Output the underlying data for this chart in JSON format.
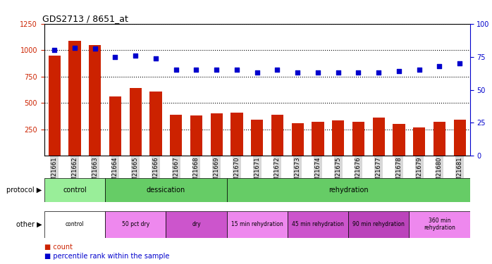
{
  "title": "GDS2713 / 8651_at",
  "samples": [
    "GSM21661",
    "GSM21662",
    "GSM21663",
    "GSM21664",
    "GSM21665",
    "GSM21666",
    "GSM21667",
    "GSM21668",
    "GSM21669",
    "GSM21670",
    "GSM21671",
    "GSM21672",
    "GSM21673",
    "GSM21674",
    "GSM21675",
    "GSM21676",
    "GSM21677",
    "GSM21678",
    "GSM21679",
    "GSM21680",
    "GSM21681"
  ],
  "counts": [
    950,
    1090,
    1050,
    560,
    640,
    610,
    390,
    380,
    400,
    410,
    340,
    390,
    310,
    320,
    335,
    325,
    365,
    300,
    270,
    320,
    345
  ],
  "percentiles": [
    80,
    82,
    81,
    75,
    76,
    74,
    65,
    65,
    65,
    65,
    63,
    65,
    63,
    63,
    63,
    63,
    63,
    64,
    65,
    68,
    70
  ],
  "ylim_left": [
    0,
    1250
  ],
  "ylim_right": [
    0,
    100
  ],
  "yticks_left": [
    250,
    500,
    750,
    1000,
    1250
  ],
  "yticks_right": [
    0,
    25,
    50,
    75,
    100
  ],
  "bar_color": "#cc2200",
  "scatter_color": "#0000cc",
  "protocol_colors": {
    "control": "#99ee99",
    "dessication": "#66cc66",
    "rehydration": "#66cc66"
  },
  "protocol_groups": [
    {
      "label": "control",
      "start": 0,
      "end": 3,
      "color": "#99ee99"
    },
    {
      "label": "dessication",
      "start": 3,
      "end": 9,
      "color": "#66cc66"
    },
    {
      "label": "rehydration",
      "start": 9,
      "end": 21,
      "color": "#66cc66"
    }
  ],
  "other_groups": [
    {
      "label": "control",
      "start": 0,
      "end": 3,
      "color": "#ffffff"
    },
    {
      "label": "50 pct dry",
      "start": 3,
      "end": 6,
      "color": "#ee88ee"
    },
    {
      "label": "dry",
      "start": 6,
      "end": 9,
      "color": "#cc55cc"
    },
    {
      "label": "15 min rehydration",
      "start": 9,
      "end": 12,
      "color": "#ee88ee"
    },
    {
      "label": "45 min rehydration",
      "start": 12,
      "end": 15,
      "color": "#cc55cc"
    },
    {
      "label": "90 min rehydration",
      "start": 15,
      "end": 18,
      "color": "#bb44bb"
    },
    {
      "label": "360 min\nrehydration",
      "start": 18,
      "end": 21,
      "color": "#ee88ee"
    }
  ]
}
